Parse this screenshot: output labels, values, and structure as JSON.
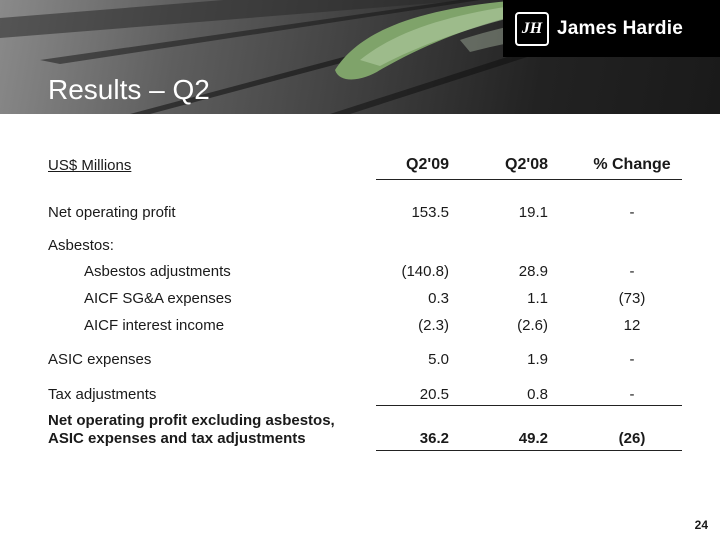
{
  "header": {
    "title": "Results – Q2",
    "brand": "James Hardie",
    "brand_mark": "JH"
  },
  "table": {
    "unit_label": "US$ Millions",
    "col_headers": [
      "Q2'09",
      "Q2'08",
      "% Change"
    ],
    "rows": [
      {
        "label": "Net operating profit",
        "q209": "153.5",
        "q208": "19.1",
        "change": "-"
      },
      {
        "label": "Asbestos:",
        "q209": "",
        "q208": "",
        "change": ""
      },
      {
        "label": "Asbestos adjustments",
        "q209": "(140.8)",
        "q208": "28.9",
        "change": "-"
      },
      {
        "label": "AICF SG&A expenses",
        "q209": "0.3",
        "q208": "1.1",
        "change": "(73)"
      },
      {
        "label": "AICF interest income",
        "q209": "(2.3)",
        "q208": "(2.6)",
        "change": "12"
      },
      {
        "label": "ASIC expenses",
        "q209": "5.0",
        "q208": "1.9",
        "change": "-"
      },
      {
        "label": "Tax adjustments",
        "q209": "20.5",
        "q208": "0.8",
        "change": "-"
      }
    ],
    "total": {
      "label_line1": "Net operating profit excluding asbestos,",
      "label_line2": "ASIC expenses and tax adjustments",
      "q209": "36.2",
      "q208": "49.2",
      "change": "(26)"
    }
  },
  "footer": {
    "page_number": "24"
  },
  "colors": {
    "brand_black": "#000000",
    "leaf_green": "#7fa36a"
  }
}
